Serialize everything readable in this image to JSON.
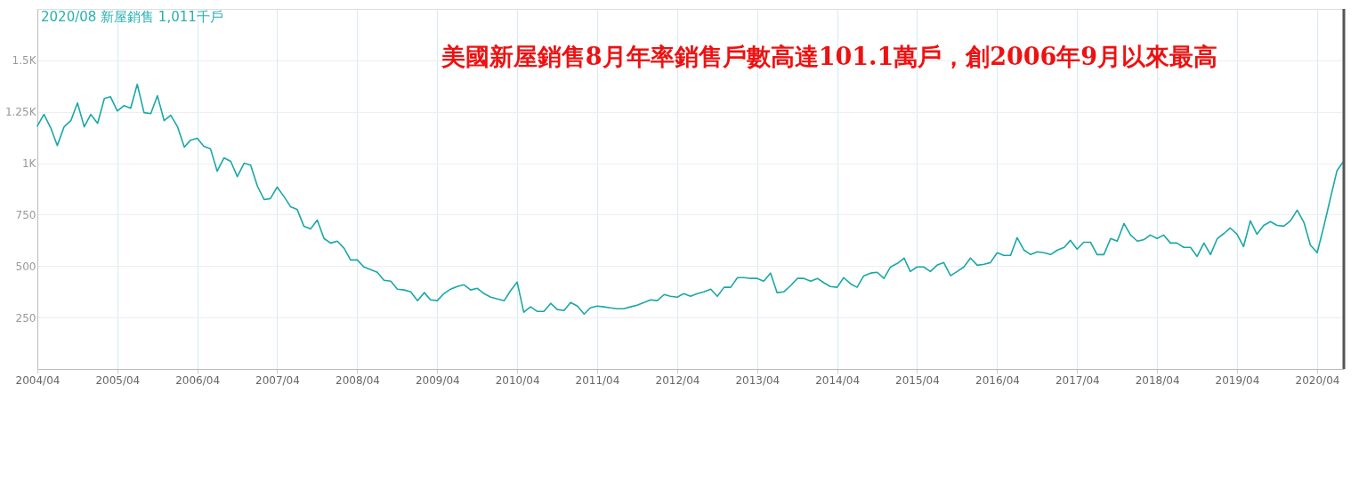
{
  "chart_data": {
    "type": "line",
    "title": "美國新屋銷售8月年率銷售戶數高達101.1萬戶，創2006年9月以來最高",
    "annotations": [
      "2020/08 新屋銷售 1,011千戶"
    ],
    "x": [
      "2004-04",
      "2004-05",
      "2004-06",
      "2004-07",
      "2004-08",
      "2004-09",
      "2004-10",
      "2004-11",
      "2004-12",
      "2005-01",
      "2005-02",
      "2005-03",
      "2005-04",
      "2005-05",
      "2005-06",
      "2005-07",
      "2005-08",
      "2005-09",
      "2005-10",
      "2005-11",
      "2005-12",
      "2006-01",
      "2006-02",
      "2006-03",
      "2006-04",
      "2006-05",
      "2006-06",
      "2006-07",
      "2006-08",
      "2006-09",
      "2006-10",
      "2006-11",
      "2006-12",
      "2007-01",
      "2007-02",
      "2007-03",
      "2007-04",
      "2007-05",
      "2007-06",
      "2007-07",
      "2007-08",
      "2007-09",
      "2007-10",
      "2007-11",
      "2007-12",
      "2008-01",
      "2008-02",
      "2008-03",
      "2008-04",
      "2008-05",
      "2008-06",
      "2008-07",
      "2008-08",
      "2008-09",
      "2008-10",
      "2008-11",
      "2008-12",
      "2009-01",
      "2009-02",
      "2009-03",
      "2009-04",
      "2009-05",
      "2009-06",
      "2009-07",
      "2009-08",
      "2009-09",
      "2009-10",
      "2009-11",
      "2009-12",
      "2010-01",
      "2010-02",
      "2010-03",
      "2010-04",
      "2010-05",
      "2010-06",
      "2010-07",
      "2010-08",
      "2010-09",
      "2010-10",
      "2010-11",
      "2010-12",
      "2011-01",
      "2011-02",
      "2011-03",
      "2011-04",
      "2011-05",
      "2011-06",
      "2011-07",
      "2011-08",
      "2011-09",
      "2011-10",
      "2011-11",
      "2011-12",
      "2012-01",
      "2012-02",
      "2012-03",
      "2012-04",
      "2012-05",
      "2012-06",
      "2012-07",
      "2012-08",
      "2012-09",
      "2012-10",
      "2012-11",
      "2012-12",
      "2013-01",
      "2013-02",
      "2013-03",
      "2013-04",
      "2013-05",
      "2013-06",
      "2013-07",
      "2013-08",
      "2013-09",
      "2013-10",
      "2013-11",
      "2013-12",
      "2014-01",
      "2014-02",
      "2014-03",
      "2014-04",
      "2014-05",
      "2014-06",
      "2014-07",
      "2014-08",
      "2014-09",
      "2014-10",
      "2014-11",
      "2014-12",
      "2015-01",
      "2015-02",
      "2015-03",
      "2015-04",
      "2015-05",
      "2015-06",
      "2015-07",
      "2015-08",
      "2015-09",
      "2015-10",
      "2015-11",
      "2015-12",
      "2016-01",
      "2016-02",
      "2016-03",
      "2016-04",
      "2016-05",
      "2016-06",
      "2016-07",
      "2016-08",
      "2016-09",
      "2016-10",
      "2016-11",
      "2016-12",
      "2017-01",
      "2017-02",
      "2017-03",
      "2017-04",
      "2017-05",
      "2017-06",
      "2017-07",
      "2017-08",
      "2017-09",
      "2017-10",
      "2017-11",
      "2017-12",
      "2018-01",
      "2018-02",
      "2018-03",
      "2018-04",
      "2018-05",
      "2018-06",
      "2018-07",
      "2018-08",
      "2018-09",
      "2018-10",
      "2018-11",
      "2018-12",
      "2019-01",
      "2019-02",
      "2019-03",
      "2019-04",
      "2019-05",
      "2019-06",
      "2019-07",
      "2019-08",
      "2019-09",
      "2019-10",
      "2019-11",
      "2019-12",
      "2020-01",
      "2020-02",
      "2020-03",
      "2020-04",
      "2020-05",
      "2020-06",
      "2020-07",
      "2020-08"
    ],
    "series": [
      {
        "color": "#1aa7a7",
        "values": [
          1181,
          1237,
          1172,
          1086,
          1177,
          1207,
          1293,
          1177,
          1237,
          1194,
          1315,
          1323,
          1254,
          1280,
          1267,
          1384,
          1246,
          1241,
          1328,
          1207,
          1233,
          1177,
          1078,
          1112,
          1121,
          1082,
          1069,
          961,
          1026,
          1009,
          935,
          1000,
          991,
          888,
          823,
          828,
          884,
          840,
          789,
          776,
          694,
          681,
          724,
          634,
          612,
          621,
          586,
          530,
          530,
          496,
          483,
          470,
          431,
          427,
          388,
          384,
          375,
          332,
          371,
          336,
          332,
          366,
          388,
          401,
          409,
          384,
          392,
          366,
          349,
          340,
          332,
          379,
          422,
          276,
          302,
          280,
          280,
          319,
          289,
          284,
          323,
          306,
          267,
          297,
          306,
          302,
          297,
          293,
          293,
          302,
          310,
          323,
          336,
          332,
          362,
          353,
          349,
          366,
          353,
          366,
          375,
          388,
          353,
          397,
          397,
          444,
          444,
          440,
          440,
          427,
          466,
          371,
          375,
          405,
          440,
          440,
          427,
          440,
          418,
          401,
          397,
          444,
          414,
          397,
          453,
          466,
          470,
          440,
          496,
          513,
          539,
          474,
          496,
          496,
          474,
          504,
          517,
          453,
          474,
          496,
          539,
          504,
          509,
          517,
          565,
          552,
          552,
          638,
          578,
          556,
          569,
          565,
          556,
          578,
          591,
          625,
          582,
          616,
          616,
          556,
          556,
          634,
          621,
          707,
          651,
          621,
          629,
          651,
          634,
          651,
          612,
          612,
          591,
          591,
          547,
          612,
          556,
          634,
          659,
          685,
          655,
          595,
          720,
          655,
          698,
          716,
          698,
          694,
          720,
          772,
          711,
          603,
          565,
          690,
          832,
          965,
          1011
        ]
      }
    ],
    "xlim": [
      "2004-04",
      "2020-08"
    ],
    "xticks": [
      {
        "value": "2004-04",
        "label": "2004/04"
      },
      {
        "value": "2005-04",
        "label": "2005/04"
      },
      {
        "value": "2006-04",
        "label": "2006/04"
      },
      {
        "value": "2007-04",
        "label": "2007/04"
      },
      {
        "value": "2008-04",
        "label": "2008/04"
      },
      {
        "value": "2009-04",
        "label": "2009/04"
      },
      {
        "value": "2010-04",
        "label": "2010/04"
      },
      {
        "value": "2011-04",
        "label": "2011/04"
      },
      {
        "value": "2012-04",
        "label": "2012/04"
      },
      {
        "value": "2013-04",
        "label": "2013/04"
      },
      {
        "value": "2014-04",
        "label": "2014/04"
      },
      {
        "value": "2015-04",
        "label": "2015/04"
      },
      {
        "value": "2016-04",
        "label": "2016/04"
      },
      {
        "value": "2017-04",
        "label": "2017/04"
      },
      {
        "value": "2018-04",
        "label": "2018/04"
      },
      {
        "value": "2019-04",
        "label": "2019/04"
      },
      {
        "value": "2020-04",
        "label": "2020/04"
      }
    ],
    "ylim": [
      0,
      1750
    ],
    "yticks": [
      250,
      500,
      750,
      {
        "value": 1000,
        "label": "1K"
      },
      {
        "value": 1250,
        "label": "1.25K"
      },
      {
        "value": 1500,
        "label": "1.5K"
      }
    ],
    "ref_lines": [
      {
        "axis": "x",
        "value": "2020-08",
        "label": null,
        "color": "#555555"
      }
    ],
    "grid": true,
    "line_style": "solid"
  }
}
